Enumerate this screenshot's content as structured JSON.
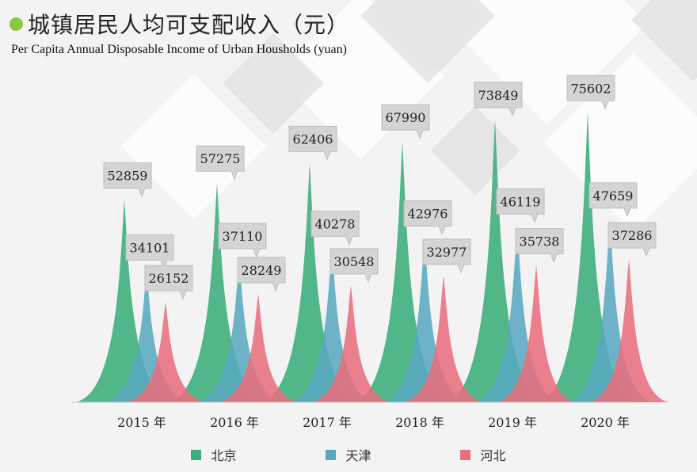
{
  "title": "城镇居民人均可支配收入（元）",
  "subtitle": "Per Capita Annual Disposable Income of Urban Housholds (yuan)",
  "colors": {
    "background": "#f3f3f3",
    "accent_dot": "#8dc63f",
    "series": [
      "#3aae7a",
      "#5aa8c0",
      "#e8707e"
    ]
  },
  "chart_data": {
    "type": "area",
    "categories": [
      "2015 年",
      "2016 年",
      "2017 年",
      "2018 年",
      "2019 年",
      "2020 年"
    ],
    "series": [
      {
        "name": "北京",
        "values": [
          52859,
          57275,
          62406,
          67990,
          73849,
          75602
        ]
      },
      {
        "name": "天津",
        "values": [
          34101,
          37110,
          40278,
          42976,
          46119,
          47659
        ]
      },
      {
        "name": "河北",
        "values": [
          26152,
          28249,
          30548,
          32977,
          35738,
          37286
        ]
      }
    ],
    "legend_position": "bottom",
    "grid": false,
    "ylim": [
      0,
      80000
    ]
  }
}
